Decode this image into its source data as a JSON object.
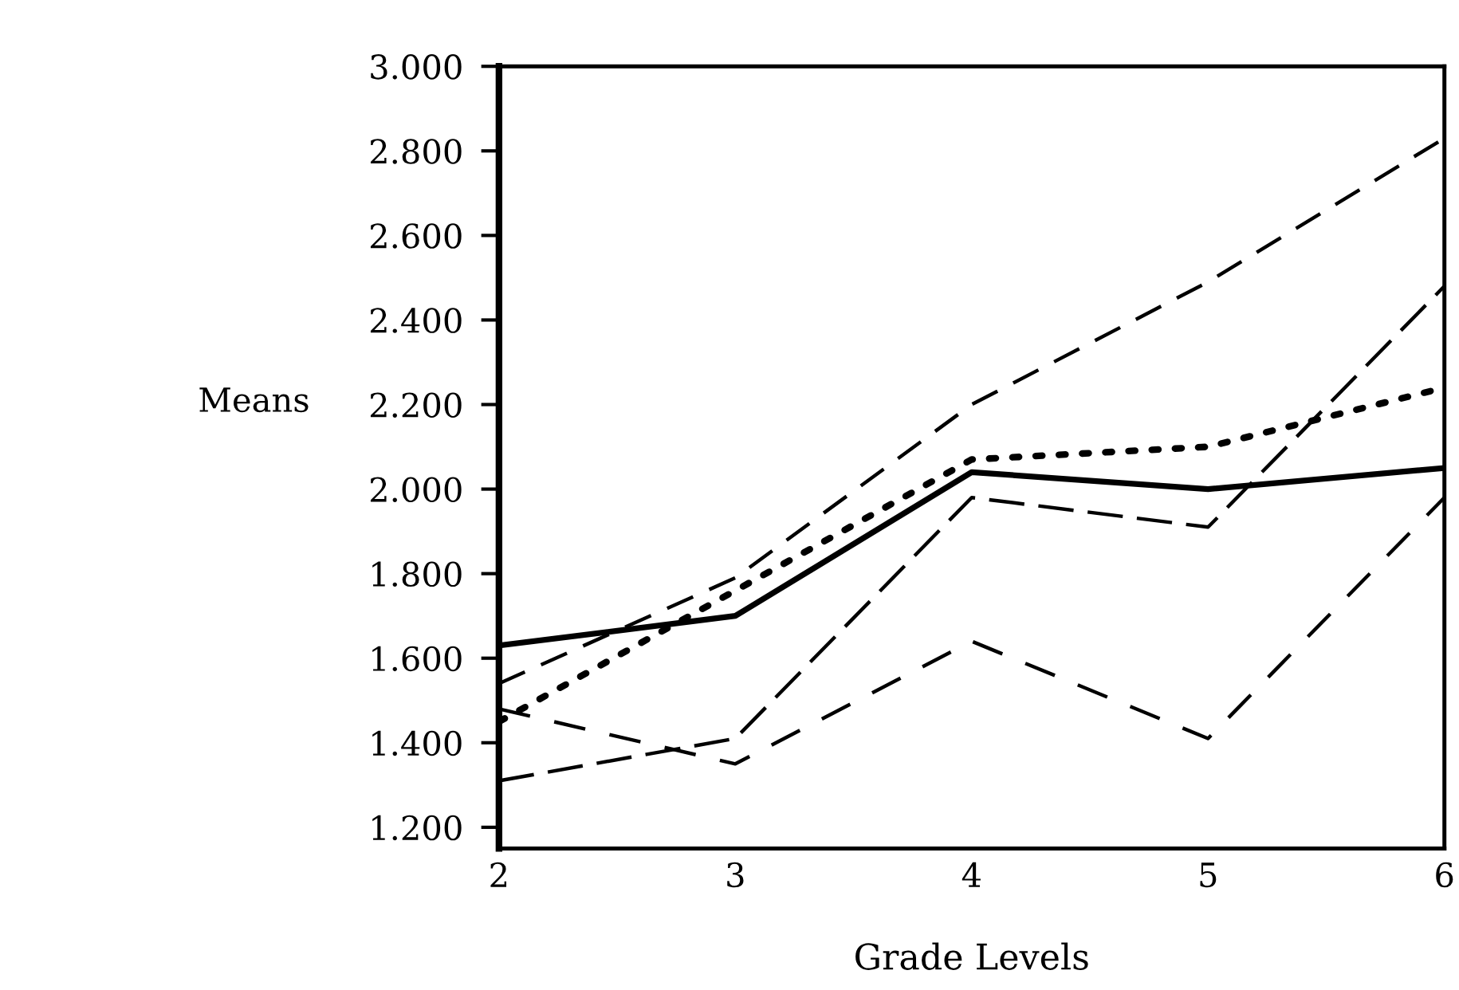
{
  "chart_data": {
    "type": "line",
    "xlabel": "Grade Levels",
    "ylabel": "Means",
    "x": [
      2,
      3,
      4,
      5,
      6
    ],
    "xlim": [
      2,
      6
    ],
    "xticks": [
      2,
      3,
      4,
      5,
      6
    ],
    "ylim": [
      1.15,
      3.0
    ],
    "yticks": [
      {
        "value": 1.2,
        "label": "1.200"
      },
      {
        "value": 1.4,
        "label": "1.400"
      },
      {
        "value": 1.6,
        "label": "1.600"
      },
      {
        "value": 1.8,
        "label": "1.800"
      },
      {
        "value": 2.0,
        "label": "2.000"
      },
      {
        "value": 2.2,
        "label": "2.200"
      },
      {
        "value": 2.4,
        "label": "2.400"
      },
      {
        "value": 2.6,
        "label": "2.600"
      },
      {
        "value": 2.8,
        "label": "2.800"
      },
      {
        "value": 3.0,
        "label": "3.000"
      }
    ],
    "grid": false,
    "legend": false,
    "marker": "none",
    "series": [
      {
        "color": "#000000",
        "line_style": "solid",
        "values": [
          1.63,
          1.7,
          2.04,
          2.0,
          2.05
        ]
      },
      {
        "color": "#000000",
        "line_style": "dashed",
        "values": [
          1.54,
          1.79,
          2.2,
          2.49,
          2.83
        ]
      },
      {
        "color": "#000000",
        "line_style": "dotted",
        "values": [
          1.45,
          1.76,
          2.07,
          2.1,
          2.24
        ]
      },
      {
        "color": "#000000",
        "line_style": "dashed",
        "values": [
          1.31,
          1.41,
          1.98,
          1.91,
          2.48
        ]
      },
      {
        "color": "#000000",
        "line_style": "dashed",
        "values": [
          1.48,
          1.35,
          1.64,
          1.41,
          1.98
        ]
      }
    ]
  }
}
